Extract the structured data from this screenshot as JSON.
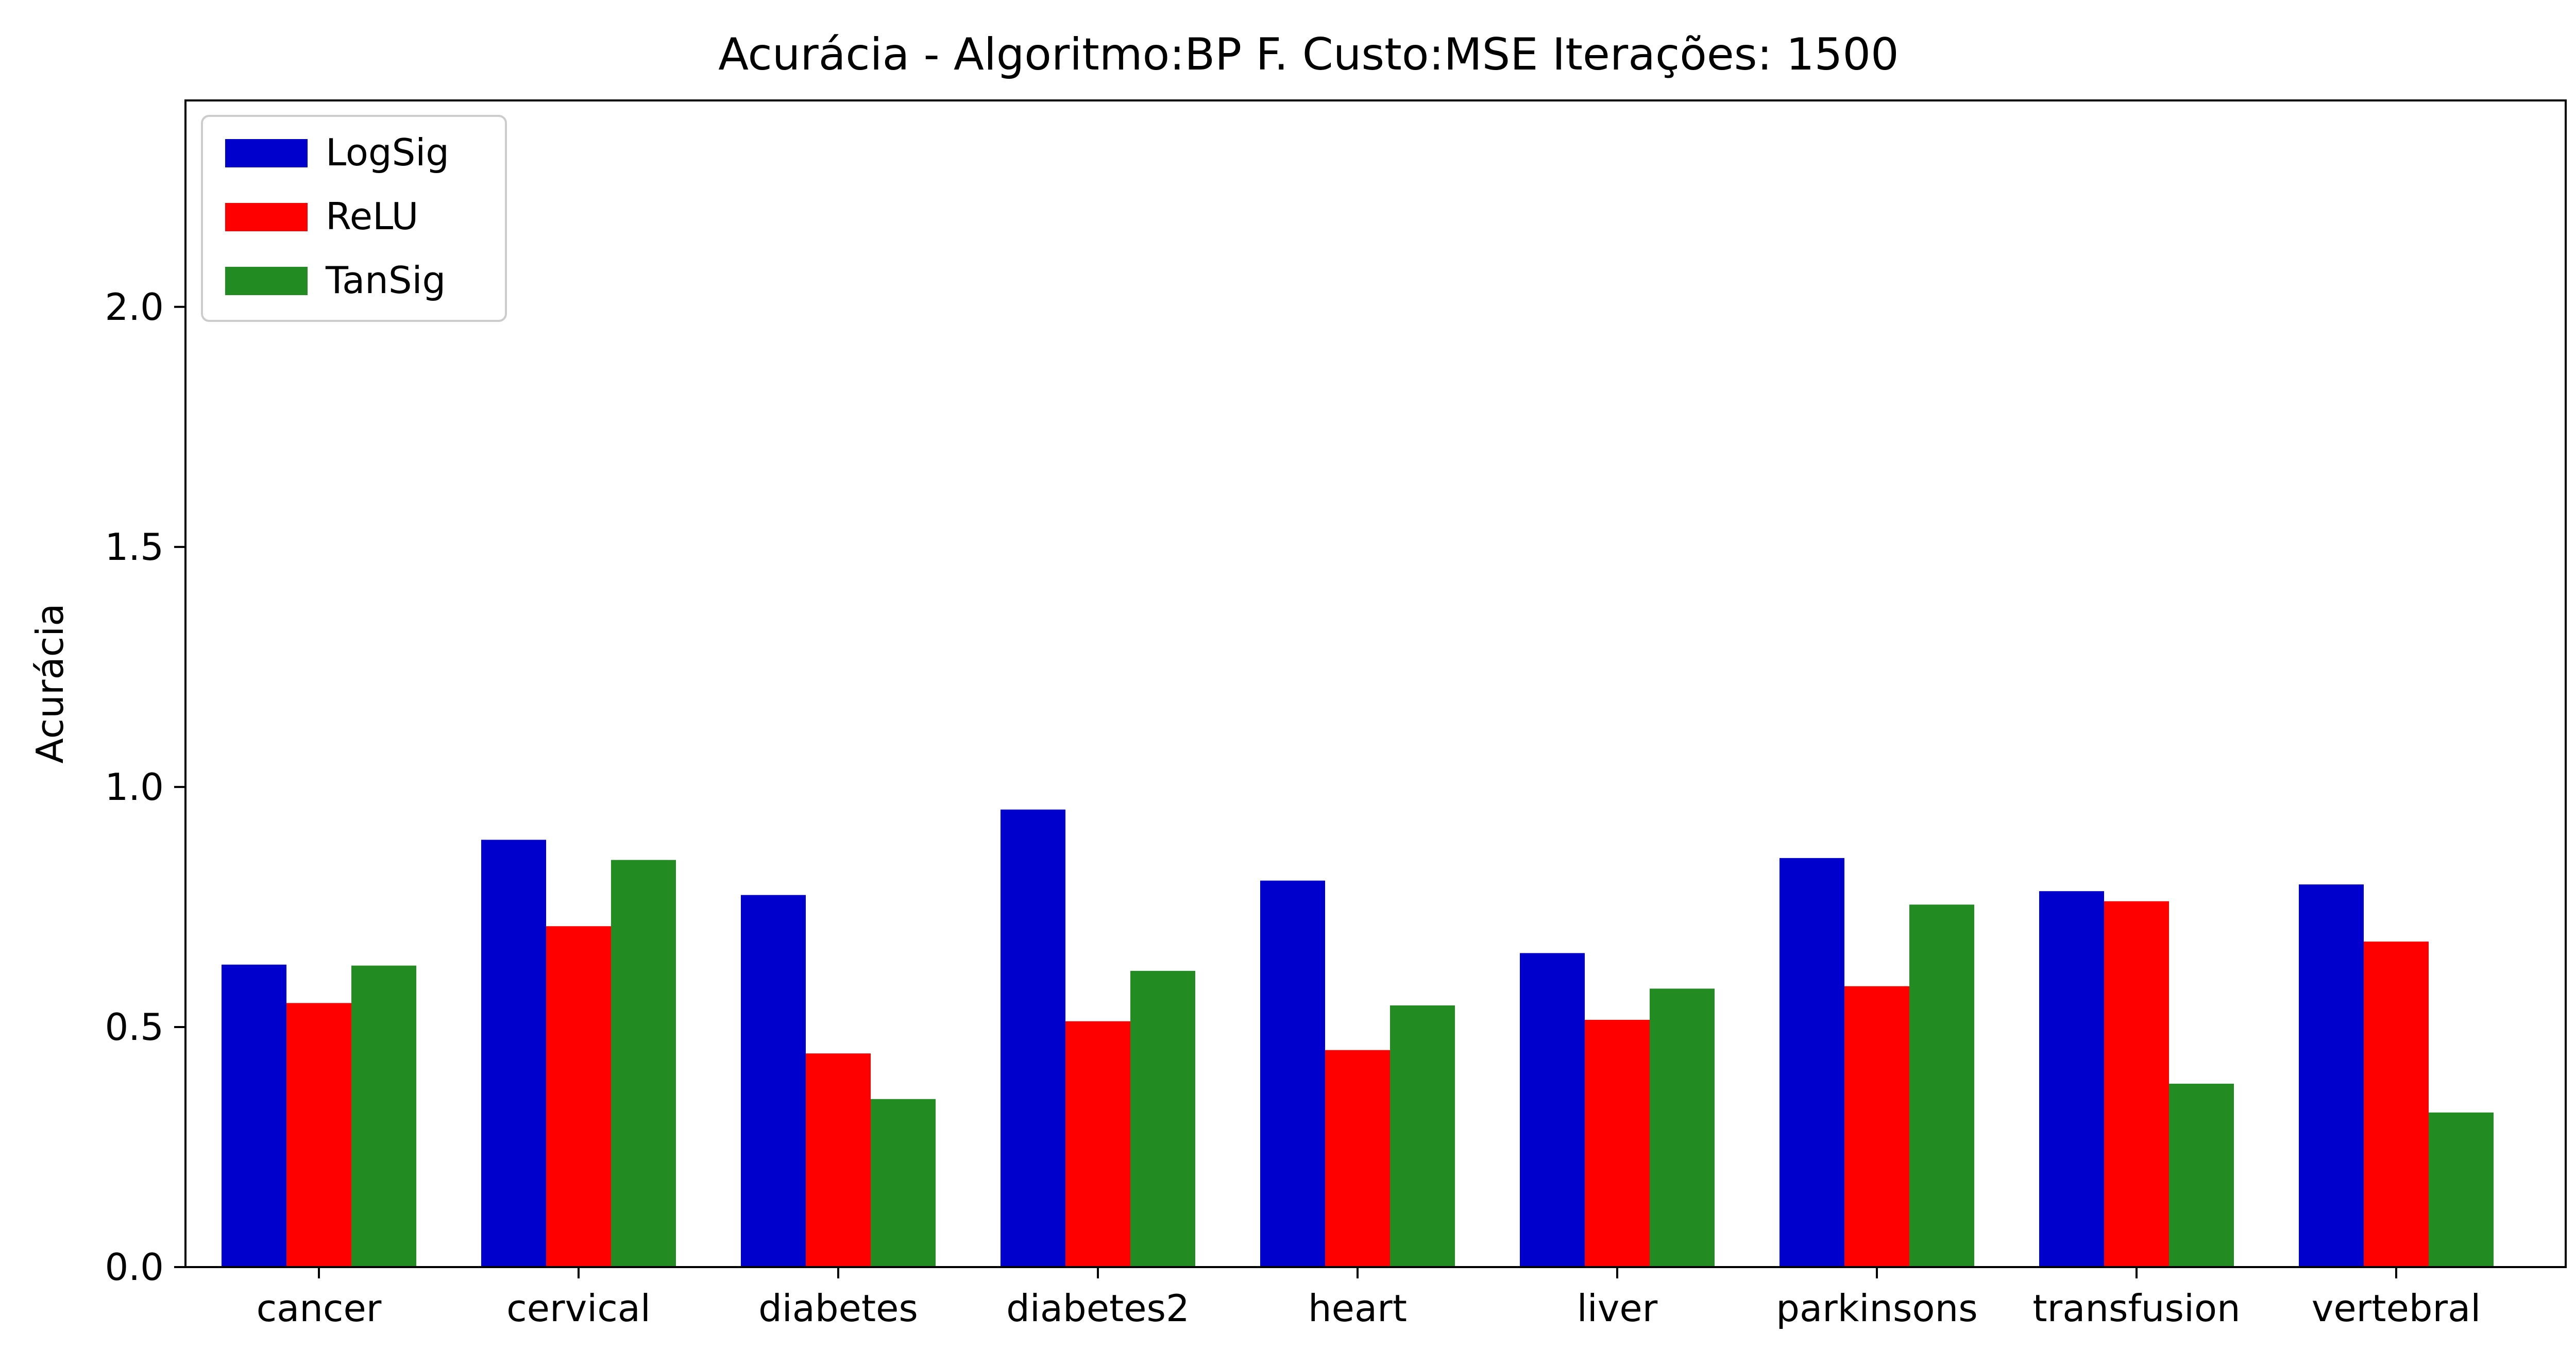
{
  "chart_data": {
    "type": "bar",
    "title": "Acurácia - Algoritmo:BP F. Custo:MSE Iterações: 1500",
    "xlabel": "",
    "ylabel": "Acurácia",
    "ylim": [
      0,
      2.43
    ],
    "yticks": [
      "0.0",
      "0.5",
      "1.0",
      "1.5",
      "2.0"
    ],
    "grid": false,
    "legend_position": "top-left",
    "categories": [
      "cancer",
      "cervical",
      "diabetes",
      "diabetes2",
      "heart",
      "liver",
      "parkinsons",
      "transfusion",
      "vertebral"
    ],
    "series": [
      {
        "name": "LogSig",
        "color": "#0000cc",
        "values": [
          0.63,
          0.89,
          0.775,
          0.953,
          0.805,
          0.654,
          0.852,
          0.783,
          0.797
        ]
      },
      {
        "name": "ReLU",
        "color": "#ff0000",
        "values": [
          0.55,
          0.71,
          0.445,
          0.512,
          0.452,
          0.515,
          0.585,
          0.762,
          0.678
        ]
      },
      {
        "name": "TanSig",
        "color": "#228b22",
        "values": [
          0.628,
          0.848,
          0.35,
          0.617,
          0.545,
          0.58,
          0.755,
          0.382,
          0.322
        ]
      }
    ]
  }
}
